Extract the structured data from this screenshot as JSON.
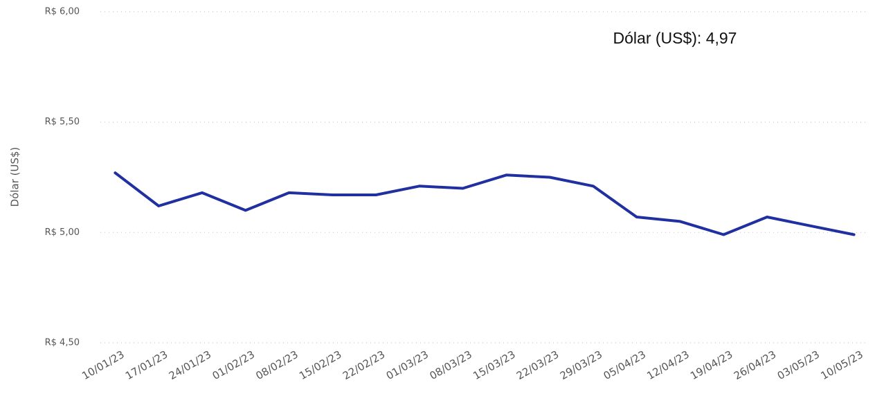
{
  "chart_data": {
    "type": "line",
    "annotation": "Dólar (US$): 4,97",
    "y_label": "Dólar (US$)",
    "categories": [
      "10/01/23",
      "17/01/23",
      "24/01/23",
      "01/02/23",
      "08/02/23",
      "15/02/23",
      "22/02/23",
      "01/03/23",
      "08/03/23",
      "15/03/23",
      "22/03/23",
      "29/03/23",
      "05/04/23",
      "12/04/23",
      "19/04/23",
      "26/04/23",
      "03/05/23",
      "10/05/23"
    ],
    "values": [
      5.27,
      5.12,
      5.18,
      5.1,
      5.18,
      5.17,
      5.17,
      5.21,
      5.2,
      5.26,
      5.25,
      5.21,
      5.07,
      5.05,
      4.99,
      5.07,
      5.03,
      4.99
    ],
    "color": "#2130a0",
    "ylim": [
      4.5,
      6
    ],
    "yticks": [
      {
        "value": 4.5,
        "label": "R$ 4,50"
      },
      {
        "value": 5,
        "label": "R$ 5,00"
      },
      {
        "value": 5.5,
        "label": "R$ 5,50"
      },
      {
        "value": 6,
        "label": "R$ 6,00"
      }
    ],
    "grid": true
  }
}
